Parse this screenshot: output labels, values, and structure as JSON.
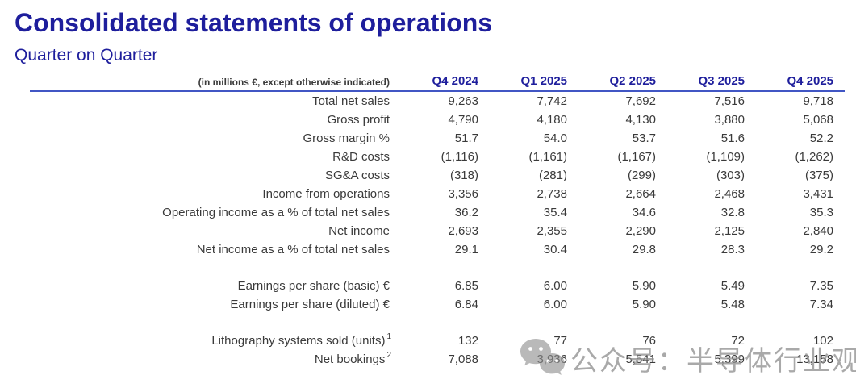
{
  "header": {
    "title": "Consolidated statements of operations",
    "subtitle": "Quarter on Quarter"
  },
  "table": {
    "note": "(in millions €, except otherwise indicated)",
    "columns": [
      "Q4 2024",
      "Q1 2025",
      "Q2 2025",
      "Q3 2025",
      "Q4 2025"
    ],
    "sections": [
      {
        "name": "operations",
        "rows": [
          {
            "label": "Total net sales",
            "values": [
              "9,263",
              "7,742",
              "7,692",
              "7,516",
              "9,718"
            ]
          },
          {
            "label": "Gross profit",
            "values": [
              "4,790",
              "4,180",
              "4,130",
              "3,880",
              "5,068"
            ]
          },
          {
            "label": "Gross margin %",
            "values": [
              "51.7",
              "54.0",
              "53.7",
              "51.6",
              "52.2"
            ]
          },
          {
            "label": "R&D costs",
            "values": [
              "(1,116)",
              "(1,161)",
              "(1,167)",
              "(1,109)",
              "(1,262)"
            ]
          },
          {
            "label": "SG&A costs",
            "values": [
              "(318)",
              "(281)",
              "(299)",
              "(303)",
              "(375)"
            ]
          },
          {
            "label": "Income from operations",
            "values": [
              "3,356",
              "2,738",
              "2,664",
              "2,468",
              "3,431"
            ]
          },
          {
            "label": "Operating income as a % of total net sales",
            "values": [
              "36.2",
              "35.4",
              "34.6",
              "32.8",
              "35.3"
            ]
          },
          {
            "label": "Net income",
            "values": [
              "2,693",
              "2,355",
              "2,290",
              "2,125",
              "2,840"
            ]
          },
          {
            "label": "Net income as a % of total net sales",
            "values": [
              "29.1",
              "30.4",
              "29.8",
              "28.3",
              "29.2"
            ]
          }
        ]
      },
      {
        "name": "per-share",
        "rows": [
          {
            "label": "Earnings per share (basic) €",
            "values": [
              "6.85",
              "6.00",
              "5.90",
              "5.49",
              "7.35"
            ]
          },
          {
            "label": "Earnings per share (diluted) €",
            "values": [
              "6.84",
              "6.00",
              "5.90",
              "5.48",
              "7.34"
            ]
          }
        ]
      },
      {
        "name": "systems-bookings",
        "rows": [
          {
            "label": "Lithography systems sold (units)",
            "sup": "1",
            "values": [
              "132",
              "77",
              "76",
              "72",
              "102"
            ]
          },
          {
            "label": "Net bookings",
            "sup": "2",
            "values": [
              "7,088",
              "3,936",
              "5,541",
              "5,399",
              "13,158"
            ]
          }
        ]
      }
    ]
  },
  "watermark": {
    "icon": "wechat-icon",
    "text": "公众号：半导体行业观察"
  },
  "colors": {
    "accent_navy": "#1e1e9c",
    "rule_blue": "#4156c4",
    "body_text": "#3a3a3a",
    "watermark_gray": "#919191"
  }
}
